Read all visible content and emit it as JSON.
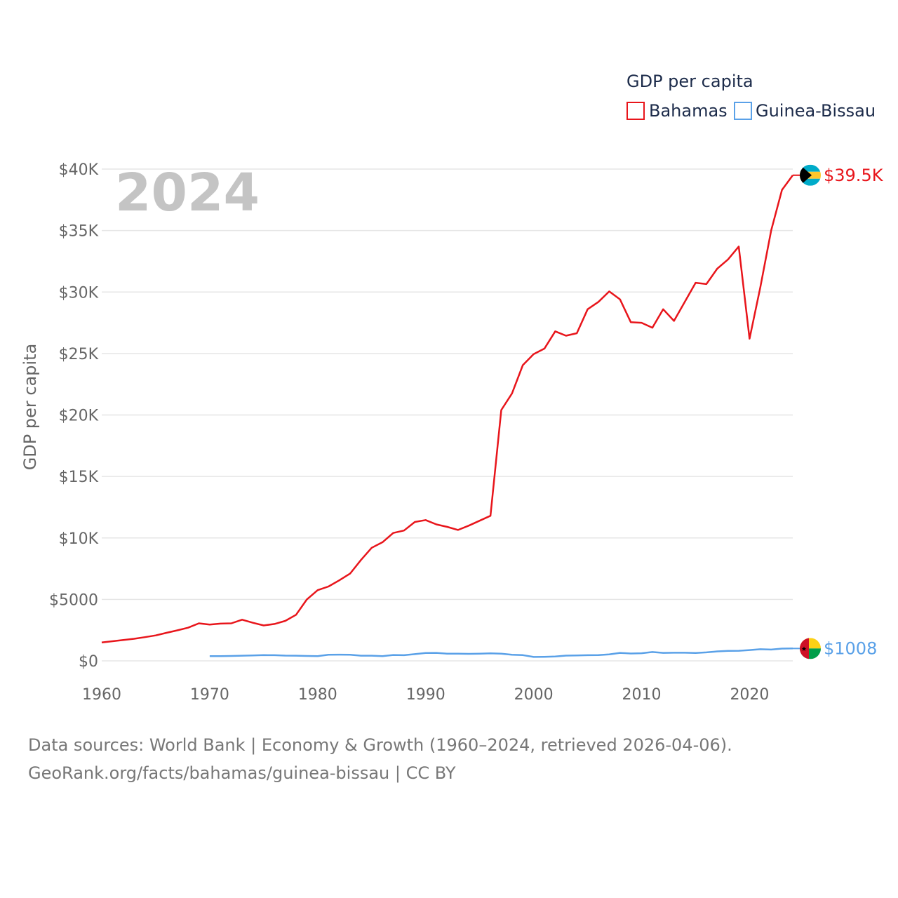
{
  "chart_data": {
    "type": "line",
    "year_label": "2024",
    "ylabel": "GDP per capita",
    "legend_title": "GDP per capita",
    "xlim": [
      1960,
      2024
    ],
    "ylim": [
      0,
      40000
    ],
    "x_ticks": [
      "1960",
      "1970",
      "1980",
      "1990",
      "2000",
      "2010",
      "2020"
    ],
    "y_ticks": [
      "$0",
      "$5000",
      "$10K",
      "$15K",
      "$20K",
      "$25K",
      "$30K",
      "$35K",
      "$40K"
    ],
    "y_tick_values": [
      0,
      5000,
      10000,
      15000,
      20000,
      25000,
      30000,
      35000,
      40000
    ],
    "series": [
      {
        "name": "Bahamas",
        "color": "#e8151b",
        "end_label": "$39.5K",
        "x": [
          1960,
          1961,
          1962,
          1963,
          1964,
          1965,
          1966,
          1967,
          1968,
          1969,
          1970,
          1971,
          1972,
          1973,
          1974,
          1975,
          1976,
          1977,
          1978,
          1979,
          1980,
          1981,
          1982,
          1983,
          1984,
          1985,
          1986,
          1987,
          1988,
          1989,
          1990,
          1991,
          1992,
          1993,
          1994,
          1995,
          1996,
          1997,
          1998,
          1999,
          2000,
          2001,
          2002,
          2003,
          2004,
          2005,
          2006,
          2007,
          2008,
          2009,
          2010,
          2011,
          2012,
          2013,
          2014,
          2015,
          2016,
          2017,
          2018,
          2019,
          2020,
          2021,
          2022,
          2023,
          2024
        ],
        "values": [
          1500,
          1600,
          1700,
          1800,
          1930,
          2070,
          2280,
          2480,
          2700,
          3050,
          2950,
          3030,
          3050,
          3350,
          3100,
          2880,
          3000,
          3250,
          3750,
          5000,
          5750,
          6050,
          6550,
          7100,
          8200,
          9200,
          9650,
          10400,
          10600,
          11300,
          11450,
          11100,
          10900,
          10650,
          11000,
          11400,
          11800,
          20400,
          21750,
          24050,
          24950,
          25400,
          26800,
          26450,
          26650,
          28600,
          29200,
          30050,
          29400,
          27550,
          27500,
          27100,
          28600,
          27650,
          29200,
          30750,
          30650,
          31900,
          32650,
          33700,
          26200,
          30400,
          35000,
          38300,
          39500
        ]
      },
      {
        "name": "Guinea-Bissau",
        "color": "#5aa1e8",
        "end_label": "$1008",
        "x": [
          1970,
          1971,
          1972,
          1973,
          1974,
          1975,
          1976,
          1977,
          1978,
          1979,
          1980,
          1981,
          1982,
          1983,
          1984,
          1985,
          1986,
          1987,
          1988,
          1989,
          1990,
          1991,
          1992,
          1993,
          1994,
          1995,
          1996,
          1997,
          1998,
          1999,
          2000,
          2001,
          2002,
          2003,
          2004,
          2005,
          2006,
          2007,
          2008,
          2009,
          2010,
          2011,
          2012,
          2013,
          2014,
          2015,
          2016,
          2017,
          2018,
          2019,
          2020,
          2021,
          2022,
          2023,
          2024
        ],
        "values": [
          380,
          380,
          400,
          420,
          440,
          470,
          460,
          430,
          420,
          400,
          380,
          500,
          510,
          500,
          420,
          420,
          380,
          480,
          460,
          550,
          640,
          650,
          580,
          580,
          570,
          590,
          610,
          580,
          500,
          470,
          320,
          330,
          360,
          430,
          440,
          460,
          470,
          530,
          650,
          600,
          620,
          720,
          650,
          660,
          660,
          640,
          690,
          770,
          810,
          820,
          880,
          950,
          920,
          1000,
          1008
        ]
      }
    ]
  },
  "legend": {
    "items": [
      "Bahamas",
      "Guinea-Bissau"
    ]
  },
  "footer": {
    "line1": "Data sources: World Bank | Economy & Growth (1960–2024, retrieved 2026-04-06).",
    "line2": "GeoRank.org/facts/bahamas/guinea-bissau | CC BY"
  }
}
